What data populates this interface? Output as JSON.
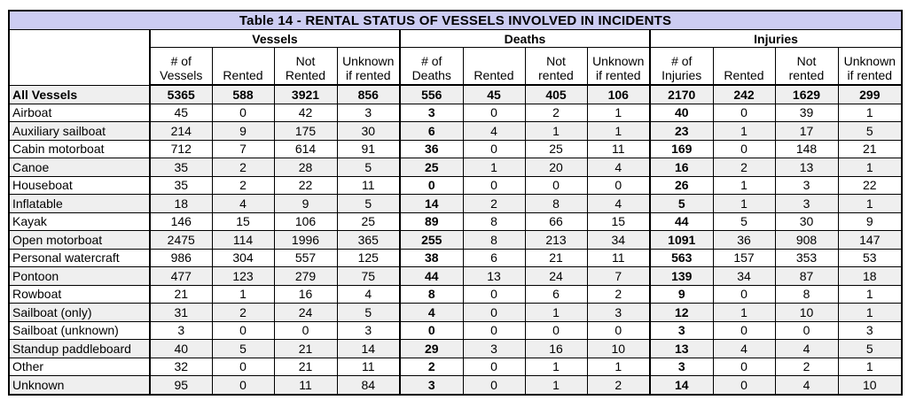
{
  "title": "Table 14 - RENTAL STATUS OF VESSELS INVOLVED IN INCIDENTS",
  "groups": [
    {
      "label": "Vessels",
      "columns": [
        "# of\nVessels",
        "Rented",
        "Not\nRented",
        "Unknown\nif rented"
      ]
    },
    {
      "label": "Deaths",
      "columns": [
        "# of\nDeaths",
        "Rented",
        "Not\nrented",
        "Unknown\nif rented"
      ]
    },
    {
      "label": "Injuries",
      "columns": [
        "# of\nInjuries",
        "Rented",
        "Not\nrented",
        "Unknown\nif rented"
      ]
    }
  ],
  "rows": [
    {
      "label": "All Vessels",
      "bold": true,
      "values": [
        5365,
        588,
        3921,
        856,
        556,
        45,
        405,
        106,
        2170,
        242,
        1629,
        299
      ]
    },
    {
      "label": "Airboat",
      "bold": false,
      "values": [
        45,
        0,
        42,
        3,
        3,
        0,
        2,
        1,
        40,
        0,
        39,
        1
      ]
    },
    {
      "label": "Auxiliary sailboat",
      "bold": false,
      "values": [
        214,
        9,
        175,
        30,
        6,
        4,
        1,
        1,
        23,
        1,
        17,
        5
      ]
    },
    {
      "label": "Cabin motorboat",
      "bold": false,
      "values": [
        712,
        7,
        614,
        91,
        36,
        0,
        25,
        11,
        169,
        0,
        148,
        21
      ]
    },
    {
      "label": "Canoe",
      "bold": false,
      "values": [
        35,
        2,
        28,
        5,
        25,
        1,
        20,
        4,
        16,
        2,
        13,
        1
      ]
    },
    {
      "label": "Houseboat",
      "bold": false,
      "values": [
        35,
        2,
        22,
        11,
        0,
        0,
        0,
        0,
        26,
        1,
        3,
        22
      ]
    },
    {
      "label": "Inflatable",
      "bold": false,
      "values": [
        18,
        4,
        9,
        5,
        14,
        2,
        8,
        4,
        5,
        1,
        3,
        1
      ]
    },
    {
      "label": "Kayak",
      "bold": false,
      "values": [
        146,
        15,
        106,
        25,
        89,
        8,
        66,
        15,
        44,
        5,
        30,
        9
      ]
    },
    {
      "label": "Open motorboat",
      "bold": false,
      "values": [
        2475,
        114,
        1996,
        365,
        255,
        8,
        213,
        34,
        1091,
        36,
        908,
        147
      ]
    },
    {
      "label": "Personal watercraft",
      "bold": false,
      "values": [
        986,
        304,
        557,
        125,
        38,
        6,
        21,
        11,
        563,
        157,
        353,
        53
      ]
    },
    {
      "label": "Pontoon",
      "bold": false,
      "values": [
        477,
        123,
        279,
        75,
        44,
        13,
        24,
        7,
        139,
        34,
        87,
        18
      ]
    },
    {
      "label": "Rowboat",
      "bold": false,
      "values": [
        21,
        1,
        16,
        4,
        8,
        0,
        6,
        2,
        9,
        0,
        8,
        1
      ]
    },
    {
      "label": "Sailboat (only)",
      "bold": false,
      "values": [
        31,
        2,
        24,
        5,
        4,
        0,
        1,
        3,
        12,
        1,
        10,
        1
      ]
    },
    {
      "label": "Sailboat (unknown)",
      "bold": false,
      "values": [
        3,
        0,
        0,
        3,
        0,
        0,
        0,
        0,
        3,
        0,
        0,
        3
      ]
    },
    {
      "label": "Standup paddleboard",
      "bold": false,
      "values": [
        40,
        5,
        21,
        14,
        29,
        3,
        16,
        10,
        13,
        4,
        4,
        5
      ]
    },
    {
      "label": "Other",
      "bold": false,
      "values": [
        32,
        0,
        21,
        11,
        2,
        0,
        1,
        1,
        3,
        0,
        2,
        1
      ]
    },
    {
      "label": "Unknown",
      "bold": false,
      "values": [
        95,
        0,
        11,
        84,
        3,
        0,
        1,
        2,
        14,
        0,
        4,
        10
      ]
    }
  ],
  "colors": {
    "title_background": "#ccccf2",
    "stripe_background": "#efefef",
    "border": "#000000",
    "text": "#000000"
  }
}
